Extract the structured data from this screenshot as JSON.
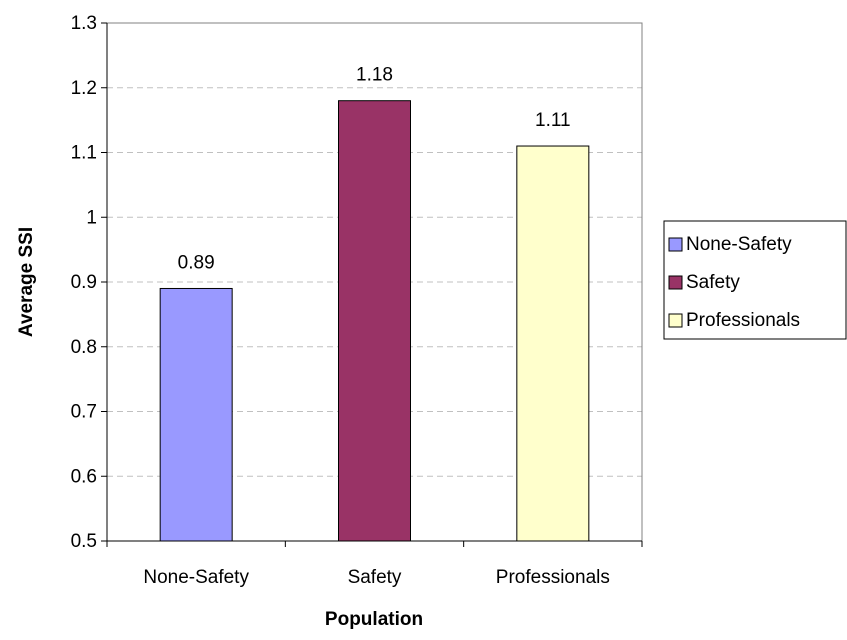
{
  "chart_data": {
    "type": "bar",
    "categories": [
      "None-Safety",
      "Safety",
      "Professionals"
    ],
    "values": [
      0.89,
      1.18,
      1.11
    ],
    "data_labels": [
      "0.89",
      "1.18",
      "1.11"
    ],
    "colors": [
      "#9999ff",
      "#993366",
      "#ffffcc"
    ],
    "xlabel": "Population",
    "ylabel": "Average SSI",
    "ylim": [
      0.5,
      1.3
    ],
    "yticks": [
      "0.5",
      "0.6",
      "0.7",
      "0.8",
      "0.9",
      "1",
      "1.1",
      "1.2",
      "1.3"
    ],
    "grid": true,
    "legend_position": "right",
    "legend": [
      "None-Safety",
      "Safety",
      "Professionals"
    ],
    "plot_background": "#ffffff",
    "plot_border_color": "#808080",
    "gridline_color": "#c0c0c0"
  }
}
